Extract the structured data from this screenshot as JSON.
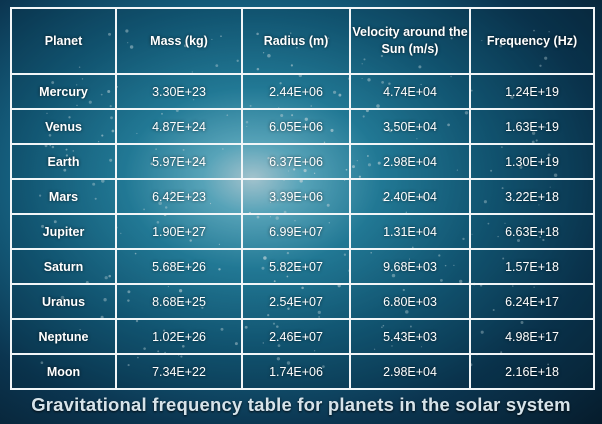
{
  "table": {
    "headers": [
      "Planet",
      "Mass (kg)",
      "Radius (m)",
      "Velocity around the Sun (m/s)",
      "Frequency (Hz)"
    ],
    "rows": [
      {
        "planet": "Mercury",
        "mass": "3.30E+23",
        "radius": "2.44E+06",
        "velocity": "4.74E+04",
        "frequency": "1.24E+19"
      },
      {
        "planet": "Venus",
        "mass": "4.87E+24",
        "radius": "6.05E+06",
        "velocity": "3.50E+04",
        "frequency": "1.63E+19"
      },
      {
        "planet": "Earth",
        "mass": "5.97E+24",
        "radius": "6.37E+06",
        "velocity": "2.98E+04",
        "frequency": "1.30E+19"
      },
      {
        "planet": "Mars",
        "mass": "6.42E+23",
        "radius": "3.39E+06",
        "velocity": "2.40E+04",
        "frequency": "3.22E+18"
      },
      {
        "planet": "Jupiter",
        "mass": "1.90E+27",
        "radius": "6.99E+07",
        "velocity": "1.31E+04",
        "frequency": "6.63E+18"
      },
      {
        "planet": "Saturn",
        "mass": "5.68E+26",
        "radius": "5.82E+07",
        "velocity": "9.68E+03",
        "frequency": "1.57E+18"
      },
      {
        "planet": "Uranus",
        "mass": "8.68E+25",
        "radius": "2.54E+07",
        "velocity": "6.80E+03",
        "frequency": "6.24E+17"
      },
      {
        "planet": "Neptune",
        "mass": "1.02E+26",
        "radius": "2.46E+07",
        "velocity": "5.43E+03",
        "frequency": "4.98E+17"
      },
      {
        "planet": "Moon",
        "mass": "7.34E+22",
        "radius": "1.74E+06",
        "velocity": "2.98E+04",
        "frequency": "2.16E+18"
      }
    ]
  },
  "caption": "Gravitational frequency table for planets in the solar system",
  "colors": {
    "background_glow": "#6fc6dc",
    "background_dark": "#061c2c",
    "grid": "#f2f6f8",
    "caption": "#d6e3ea"
  }
}
